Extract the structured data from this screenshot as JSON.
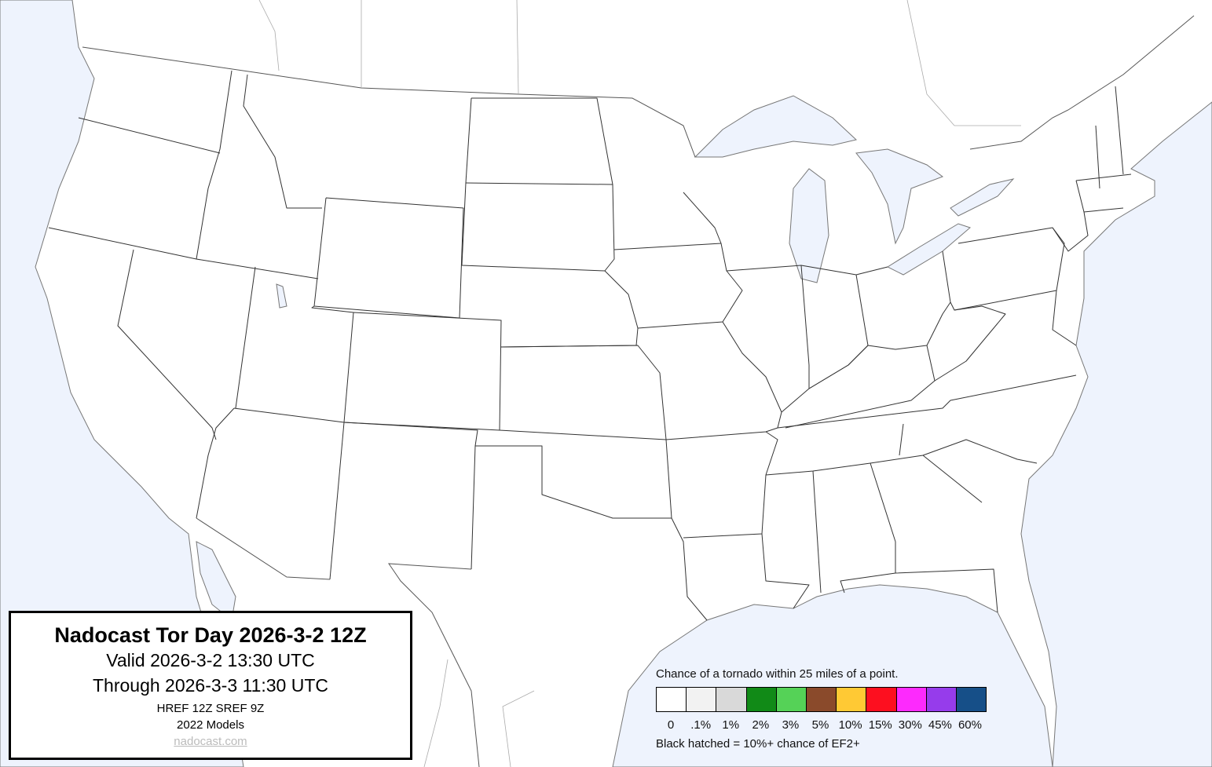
{
  "title_box": {
    "title": "Nadocast Tor Day 2026-3-2 12Z",
    "valid": "Valid 2026-3-2 13:30 UTC",
    "through": "Through 2026-3-3 11:30 UTC",
    "models_run": "HREF 12Z SREF 9Z",
    "models_version": "2022 Models",
    "link": "nadocast.com"
  },
  "legend": {
    "caption": "Chance of a tornado within 25 miles of a point.",
    "items": [
      {
        "label": "0",
        "color": "#ffffff"
      },
      {
        "label": ".1%",
        "color": "#f2f2f2"
      },
      {
        "label": "1%",
        "color": "#d9d9d9"
      },
      {
        "label": "2%",
        "color": "#118a17"
      },
      {
        "label": "3%",
        "color": "#55d257"
      },
      {
        "label": "5%",
        "color": "#8a4a2b"
      },
      {
        "label": "10%",
        "color": "#ffc934"
      },
      {
        "label": "15%",
        "color": "#fd0f1f"
      },
      {
        "label": "30%",
        "color": "#fd2afd"
      },
      {
        "label": "45%",
        "color": "#963ceb"
      },
      {
        "label": "60%",
        "color": "#164f88"
      }
    ],
    "note": "Black hatched = 10%+ chance of EF2+"
  },
  "map": {
    "land_color": "#ffffff",
    "water_color": "#eef3fd"
  }
}
